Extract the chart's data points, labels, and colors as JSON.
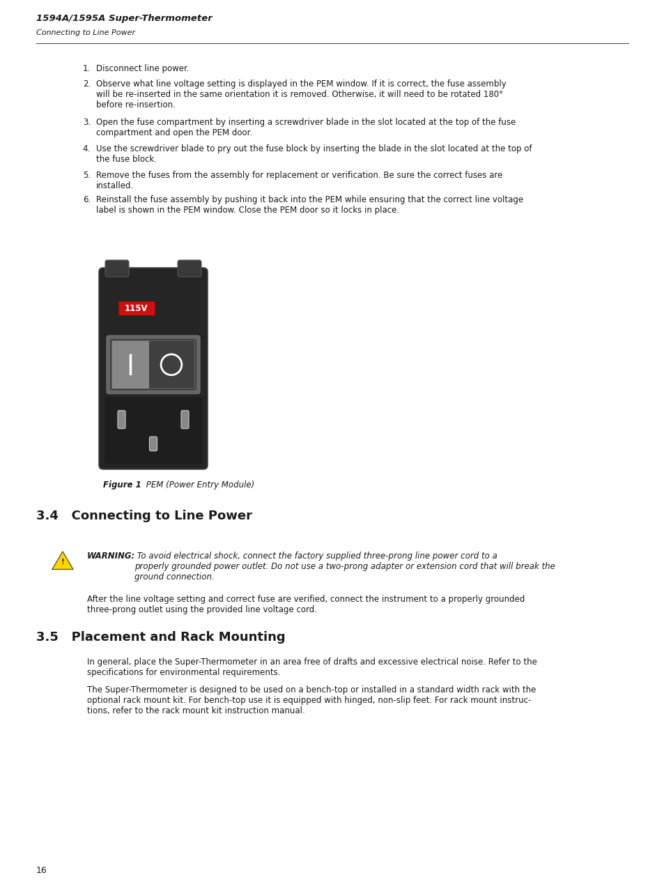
{
  "bg_color": "#ffffff",
  "page_width": 9.54,
  "page_height": 12.85,
  "dpi": 100,
  "header_title": "1594A/1595A Super-Thermometer",
  "header_subtitle": "Connecting to Line Power",
  "page_number": "16",
  "list_items": [
    [
      "1.",
      "Disconnect line power."
    ],
    [
      "2.",
      "Observe what line voltage setting is displayed in the PEM window. If it is correct, the fuse assembly\nwill be re-inserted in the same orientation it is removed. Otherwise, it will need to be rotated 180°\nbefore re-insertion."
    ],
    [
      "3.",
      "Open the fuse compartment by inserting a screwdriver blade in the slot located at the top of the fuse\ncompartment and open the PEM door."
    ],
    [
      "4.",
      "Use the screwdriver blade to pry out the fuse block by inserting the blade in the slot located at the top of\nthe fuse block."
    ],
    [
      "5.",
      "Remove the fuses from the assembly for replacement or verification. Be sure the correct fuses are\ninstalled."
    ],
    [
      "6.",
      "Reinstall the fuse assembly by pushing it back into the PEM while ensuring that the correct line voltage\nlabel is shown in the PEM window. Close the PEM door so it locks in place."
    ]
  ],
  "figure_caption_bold": "Figure 1",
  "figure_caption_italic": " PEM (Power Entry Module)",
  "section_34_title": "3.4   Connecting to Line Power",
  "warning_bold": "WARNING:",
  "warning_italic": " To avoid electrical shock, connect the factory supplied three-prong line power cord to a\nproperly grounded power outlet. Do not use a two-prong adapter or extension cord that will break the\nground connection.",
  "section_34_body": "After the line voltage setting and correct fuse are verified, connect the instrument to a properly grounded\nthree-prong outlet using the provided line voltage cord.",
  "section_35_title": "3.5   Placement and Rack Mounting",
  "section_35_para1": "In general, place the Super-Thermometer in an area free of drafts and excessive electrical noise. Refer to the\nspecifications for environmental requirements.",
  "section_35_para2": "The Super-Thermometer is designed to be used on a bench-top or installed in a standard width rack with the\noptional rack mount kit. For bench-top use it is equipped with hinged, non-slip feet. For rack mount instruc-\ntions, refer to the rack mount kit instruction manual.",
  "label_115v": "115V",
  "text_color": "#1a1a1a",
  "header_line_color": "#555555"
}
